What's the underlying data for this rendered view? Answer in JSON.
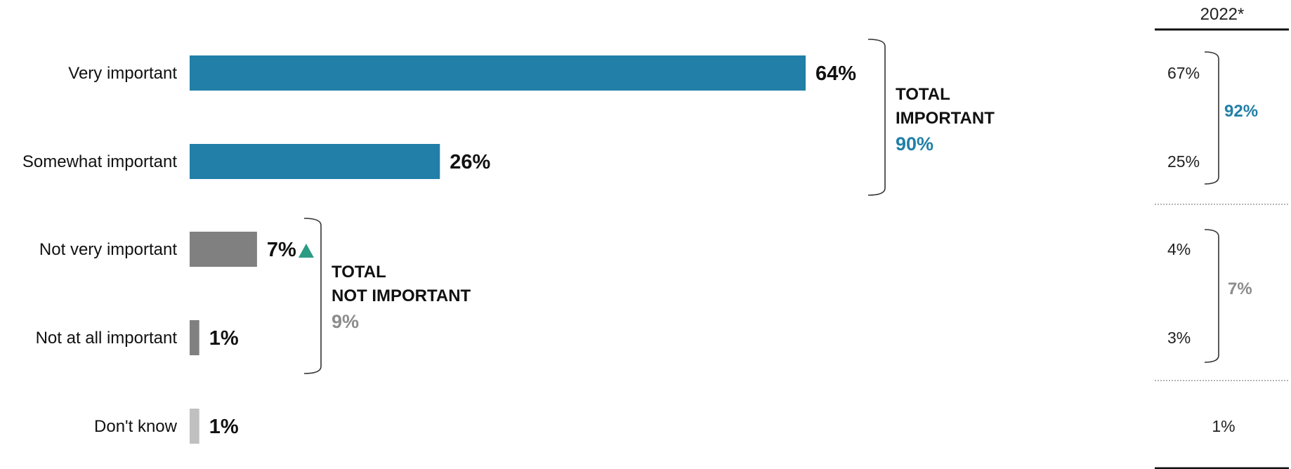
{
  "chart_data": {
    "type": "bar",
    "orientation": "horizontal",
    "categories": [
      "Very important",
      "Somewhat important",
      "Not very important",
      "Not at all important",
      "Don't know"
    ],
    "values": [
      64,
      26,
      7,
      1,
      1
    ],
    "value_labels": [
      "64%",
      "26%",
      "7%",
      "1%",
      "1%"
    ],
    "xlim": [
      0,
      100
    ],
    "grid": false,
    "colors": {
      "important": "#217fa8",
      "not_important": "#808080",
      "dont_know": "#c0c0c0",
      "increase_marker": "#2c9b84",
      "important_total": "#217fa8",
      "not_important_total": "#8c8c8c"
    },
    "bar_groups": [
      "important",
      "important",
      "not_important",
      "not_important",
      "dont_know"
    ],
    "markers": [
      {
        "category": "Not very important",
        "icon": "up-triangle-icon",
        "meaning": "increase"
      }
    ],
    "groups": [
      {
        "title_lines": [
          "TOTAL",
          "IMPORTANT"
        ],
        "total": "90%",
        "color_key": "important_total",
        "span": [
          "Very important",
          "Somewhat important"
        ]
      },
      {
        "title_lines": [
          "TOTAL",
          "NOT IMPORTANT"
        ],
        "total": "9%",
        "color_key": "not_important_total",
        "span": [
          "Not very important",
          "Not at all important"
        ]
      }
    ],
    "comparison": {
      "header": "2022*",
      "values": [
        "67%",
        "25%",
        "4%",
        "3%",
        "1%"
      ],
      "group_totals": [
        {
          "value": "92%",
          "color_key": "important_total"
        },
        {
          "value": "7%",
          "color_key": "not_important_total"
        }
      ]
    }
  }
}
